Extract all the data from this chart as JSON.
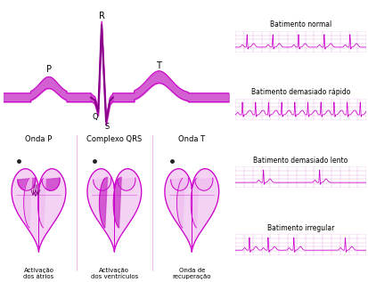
{
  "magenta": "#cc00cc",
  "magenta_light": "#dd66dd",
  "magenta_fill": "#cc44cc",
  "magenta_dark": "#880088",
  "magenta_pale": "#f0c0f0",
  "grid_color": "#dd99dd",
  "ecg_color": "#cc00cc",
  "sep_color": "#dd44cc",
  "heart_labels": [
    "Onda P",
    "Complexo QRS",
    "Onda T"
  ],
  "heart_sublabels": [
    "Activação\ndos átrios",
    "Activação\ndos ventrículos",
    "Onda de\nrecuperação"
  ],
  "strip_labels": [
    "Batimento normal",
    "Batimento demasiado rápido",
    "Batimento demasiado lento",
    "Batimento irregular"
  ]
}
